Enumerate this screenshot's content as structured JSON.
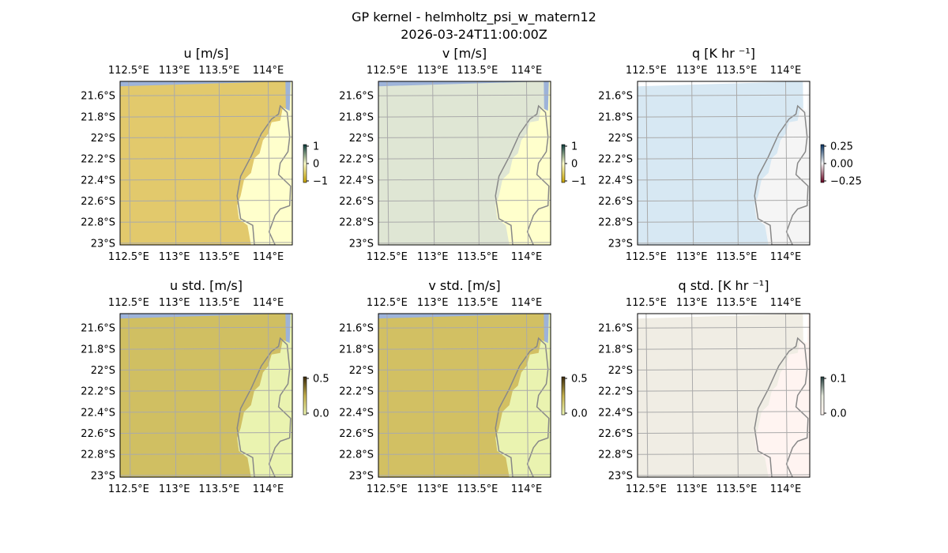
{
  "figure": {
    "title_line1": "GP kernel - helmholtz_psi_w_matern12",
    "title_line2": "2026-03-24T11:00:00Z"
  },
  "chart_data": [
    {
      "type": "heatmap",
      "title": "u [m/s]",
      "xticks": [
        "112.5°E",
        "113°E",
        "113.5°E",
        "114°E"
      ],
      "yticks": [
        "21.6°S",
        "21.8°S",
        "22°S",
        "22.2°S",
        "22.4°S",
        "22.6°S",
        "22.8°S",
        "23°S"
      ],
      "colorbar": {
        "ticks": [
          "1",
          "0",
          "−1"
        ],
        "range": [
          -1,
          1
        ],
        "colors": [
          "#0b3c3c",
          "#ffffcc",
          "#c8a400"
        ]
      },
      "colors": {
        "ocean": "#e2c96c",
        "land": "#ffffcc",
        "coast": "#888888",
        "grid": "#aaaaaa",
        "frame_bg": "#9db3d9"
      }
    },
    {
      "type": "heatmap",
      "title": "v [m/s]",
      "xticks": [
        "112.5°E",
        "113°E",
        "113.5°E",
        "114°E"
      ],
      "yticks": [
        "21.6°S",
        "21.8°S",
        "22°S",
        "22.2°S",
        "22.4°S",
        "22.6°S",
        "22.8°S",
        "23°S"
      ],
      "colorbar": {
        "ticks": [
          "1",
          "0",
          "−1"
        ],
        "range": [
          -1,
          1
        ],
        "colors": [
          "#0b3c3c",
          "#ffffcc",
          "#c8a400"
        ]
      },
      "colors": {
        "ocean": "#dfe6d4",
        "land": "#ffffcc",
        "coast": "#888888",
        "grid": "#aaaaaa",
        "frame_bg": "#9db3d9"
      }
    },
    {
      "type": "heatmap",
      "title": "q [K hr ⁻¹]",
      "xticks": [
        "112.5°E",
        "113°E",
        "113.5°E",
        "114°E"
      ],
      "yticks": [
        "21.6°S",
        "21.8°S",
        "22°S",
        "22.2°S",
        "22.4°S",
        "22.6°S",
        "22.8°S",
        "23°S"
      ],
      "colorbar": {
        "ticks": [
          "0.25",
          "0.00",
          "−0.25"
        ],
        "range": [
          -0.25,
          0.25
        ],
        "colors": [
          "#053061",
          "#f7f7f7",
          "#67001f"
        ]
      },
      "colors": {
        "ocean": "#d7e8f3",
        "land": "#f5f5f5",
        "coast": "#888888",
        "grid": "#aaaaaa",
        "frame_bg": "#ffffff"
      }
    },
    {
      "type": "heatmap",
      "title": "u std. [m/s]",
      "xticks": [
        "112.5°E",
        "113°E",
        "113.5°E",
        "114°E"
      ],
      "yticks": [
        "21.6°S",
        "21.8°S",
        "22°S",
        "22.2°S",
        "22.4°S",
        "22.6°S",
        "22.8°S",
        "23°S"
      ],
      "colorbar": {
        "ticks": [
          "0.5",
          "0.0"
        ],
        "range": [
          0,
          0.5
        ],
        "colors": [
          "#3b2a0b",
          "#c8b450",
          "#eef7b4"
        ]
      },
      "colors": {
        "ocean": "#d0bf62",
        "land": "#eaf3b0",
        "coast": "#888888",
        "grid": "#aaaaaa",
        "frame_bg": "#9db3d9"
      }
    },
    {
      "type": "heatmap",
      "title": "v std. [m/s]",
      "xticks": [
        "112.5°E",
        "113°E",
        "113.5°E",
        "114°E"
      ],
      "yticks": [
        "21.6°S",
        "21.8°S",
        "22°S",
        "22.2°S",
        "22.4°S",
        "22.6°S",
        "22.8°S",
        "23°S"
      ],
      "colorbar": {
        "ticks": [
          "0.5",
          "0.0"
        ],
        "range": [
          0,
          0.5
        ],
        "colors": [
          "#3b2a0b",
          "#c8b450",
          "#eef7b4"
        ]
      },
      "colors": {
        "ocean": "#d2c063",
        "land": "#eaf3b0",
        "coast": "#888888",
        "grid": "#aaaaaa",
        "frame_bg": "#9db3d9"
      }
    },
    {
      "type": "heatmap",
      "title": "q std. [K hr ⁻¹]",
      "xticks": [
        "112.5°E",
        "113°E",
        "113.5°E",
        "114°E"
      ],
      "yticks": [
        "21.6°S",
        "21.8°S",
        "22°S",
        "22.2°S",
        "22.4°S",
        "22.6°S",
        "22.8°S",
        "23°S"
      ],
      "colorbar": {
        "ticks": [
          "0.1",
          "0.0"
        ],
        "range": [
          0,
          0.1
        ],
        "colors": [
          "#1f3a3a",
          "#e8ecdf",
          "#fff4f0"
        ]
      },
      "colors": {
        "ocean": "#f0ede4",
        "land": "#fff4f1",
        "coast": "#888888",
        "grid": "#aaaaaa",
        "frame_bg": "#ffffff"
      }
    }
  ]
}
